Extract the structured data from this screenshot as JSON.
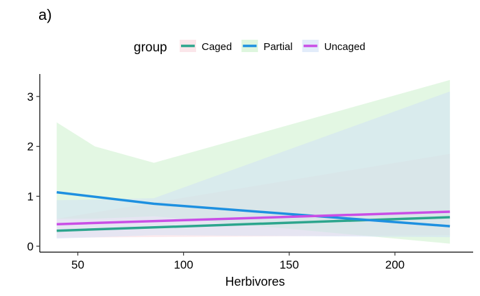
{
  "panel_label": "a)",
  "chart_data": {
    "type": "line",
    "title": "",
    "xlabel": "Herbivores",
    "ylabel": "",
    "xlim": [
      32,
      237
    ],
    "ylim": [
      -0.12,
      3.45
    ],
    "xticks": [
      50,
      100,
      150,
      200
    ],
    "yticks": [
      0,
      1,
      2,
      3
    ],
    "grid": false,
    "legend": {
      "title": "group",
      "position": "top"
    },
    "series": [
      {
        "name": "Caged",
        "color": "#2ca58d",
        "band_color": "#f9d5dc",
        "x": [
          40,
          226
        ],
        "y": [
          0.31,
          0.58
        ],
        "ci_x": [
          40,
          226
        ],
        "ci_lower": [
          0.17,
          0.22
        ],
        "ci_upper": [
          0.55,
          1.85
        ]
      },
      {
        "name": "Partial",
        "color": "#1e90e0",
        "band_color": "#c8f0c8",
        "x": [
          40,
          86,
          226
        ],
        "y": [
          1.08,
          0.85,
          0.4
        ],
        "ci_x": [
          40,
          58,
          86,
          226
        ],
        "ci_lower": [
          0.55,
          0.55,
          0.6,
          0.05
        ],
        "ci_upper": [
          2.48,
          2.0,
          1.67,
          3.33
        ]
      },
      {
        "name": "Uncaged",
        "color": "#c94ee6",
        "band_color": "#cfe0f7",
        "x": [
          40,
          226
        ],
        "y": [
          0.44,
          0.69
        ],
        "ci_x": [
          40,
          86,
          226
        ],
        "ci_lower": [
          0.15,
          0.22,
          0.18
        ],
        "ci_upper": [
          0.92,
          0.96,
          3.1
        ]
      }
    ]
  }
}
